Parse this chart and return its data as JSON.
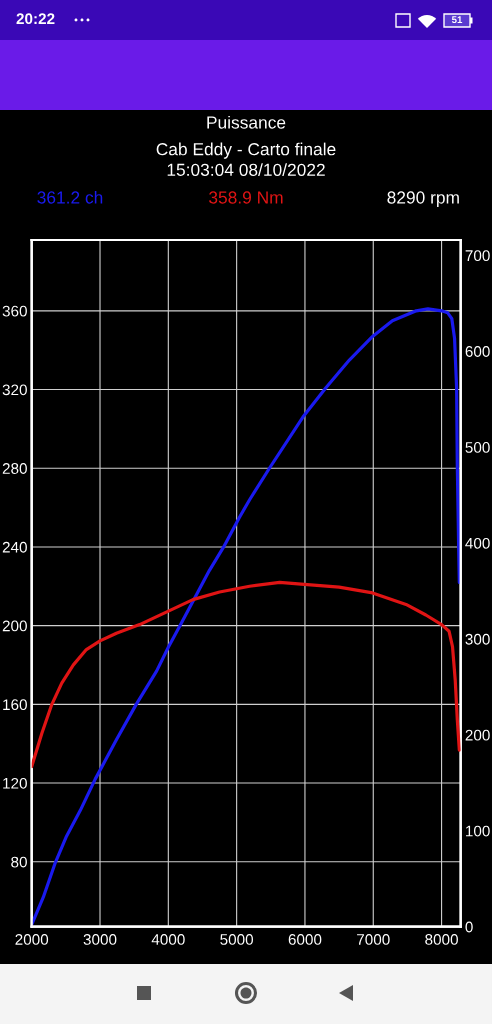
{
  "chart_data": {
    "type": "line",
    "title": "Puissance",
    "subtitle": "Cab Eddy - Carto finale\n15:03:04 08/10/2022",
    "series": [
      {
        "name": "361.2 ch",
        "color": "#1a1aee",
        "x": [
          2000,
          2170,
          2340,
          2510,
          2710,
          2930,
          3240,
          3530,
          3830,
          4000,
          4170,
          4400,
          4600,
          4810,
          5040,
          5190,
          5480,
          5970,
          6310,
          6650,
          6990,
          7280,
          7630,
          7800,
          8000,
          8090,
          8150,
          8190,
          8220,
          8230,
          8250,
          8260
        ],
        "values": [
          48,
          62,
          79,
          93,
          106,
          122,
          142,
          160,
          177,
          189,
          200,
          215,
          228,
          240,
          255,
          264,
          280,
          306,
          321,
          335,
          347,
          355,
          360,
          361,
          360,
          359,
          356,
          346,
          321,
          282,
          240,
          222
        ]
      },
      {
        "name": "358.9 Nm",
        "color": "#e01414",
        "axis": "y2",
        "x": [
          2000,
          2150,
          2290,
          2440,
          2610,
          2800,
          3000,
          3240,
          3580,
          3970,
          4360,
          4750,
          5190,
          5630,
          5990,
          6500,
          6990,
          7480,
          7770,
          8000,
          8110,
          8160,
          8200,
          8230,
          8260
        ],
        "values": [
          167,
          202,
          231,
          254,
          273,
          289,
          298,
          306,
          315,
          328,
          341,
          349,
          355,
          359,
          357,
          354,
          348,
          336,
          325,
          315,
          308,
          292,
          257,
          216,
          184
        ]
      }
    ],
    "xlim": [
      2000,
      8280
    ],
    "xticks": [
      2000,
      3000,
      4000,
      5000,
      6000,
      7000,
      8000
    ],
    "ylim": [
      47,
      396
    ],
    "yticks": [
      80,
      120,
      160,
      200,
      240,
      280,
      320,
      360
    ],
    "y2lim": [
      0,
      716
    ],
    "y2ticks": [
      0,
      100,
      200,
      300,
      400,
      500,
      600,
      700
    ],
    "grid": true,
    "annotations": [
      "8290 rpm",
      "20:22",
      "51"
    ]
  }
}
